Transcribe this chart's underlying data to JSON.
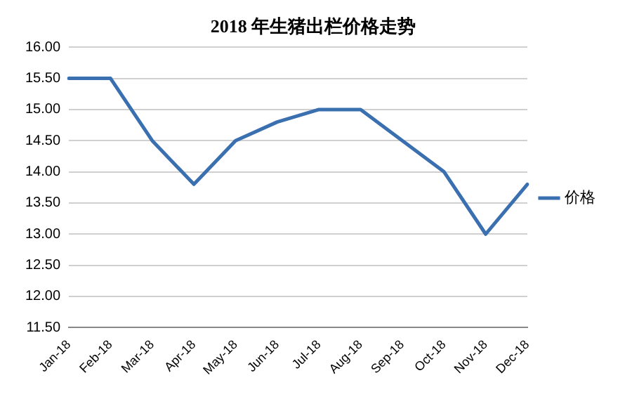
{
  "chart_data": {
    "type": "line",
    "title": "2018 年生猪出栏价格走势",
    "categories": [
      "Jan-18",
      "Feb-18",
      "Mar-18",
      "Apr-18",
      "May-18",
      "Jun-18",
      "Jul-18",
      "Aug-18",
      "Sep-18",
      "Oct-18",
      "Nov-18",
      "Dec-18"
    ],
    "series": [
      {
        "name": "价格",
        "color": "#3a6fb0",
        "values": [
          15.5,
          15.5,
          14.5,
          13.8,
          14.5,
          14.8,
          15.0,
          15.0,
          14.5,
          14.0,
          13.0,
          13.8
        ]
      }
    ],
    "ylim": [
      11.5,
      16
    ],
    "yticks": [
      {
        "value": 11.5,
        "label": "11.50"
      },
      {
        "value": 12,
        "label": "12.00"
      },
      {
        "value": 12.5,
        "label": "12.50"
      },
      {
        "value": 13,
        "label": "13.00"
      },
      {
        "value": 13.5,
        "label": "13.50"
      },
      {
        "value": 14,
        "label": "14.00"
      },
      {
        "value": 14.5,
        "label": "14.50"
      },
      {
        "value": 15,
        "label": "15.00"
      },
      {
        "value": 15.5,
        "label": "15.50"
      },
      {
        "value": 16,
        "label": "16.00"
      }
    ],
    "grid": "y",
    "legend": "right",
    "marker": "none",
    "line_style": "solid"
  }
}
